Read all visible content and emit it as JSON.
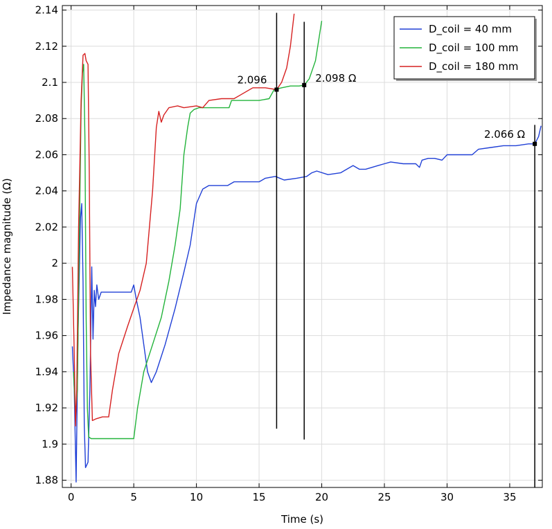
{
  "chart_data": {
    "type": "line",
    "title": "",
    "xlabel": "Time (s)",
    "ylabel": "Impedance magnitude (Ω)",
    "xlim": [
      -0.7,
      37.6
    ],
    "ylim": [
      1.876,
      2.1425
    ],
    "grid": true,
    "legend_position": "top-right",
    "x_ticks": [
      0,
      5,
      10,
      15,
      20,
      25,
      30,
      35
    ],
    "y_ticks": [
      1.88,
      1.9,
      1.92,
      1.94,
      1.96,
      1.98,
      2,
      2.02,
      2.04,
      2.06,
      2.08,
      2.1,
      2.12,
      2.14
    ],
    "x_tick_labels": [
      "0",
      "5",
      "10",
      "15",
      "20",
      "25",
      "30",
      "35"
    ],
    "y_tick_labels": [
      "1.88",
      "1.9",
      "1.92",
      "1.94",
      "1.96",
      "1.98",
      "2",
      "2.02",
      "2.04",
      "2.06",
      "2.08",
      "2.1",
      "2.12",
      "2.14"
    ],
    "series": [
      {
        "name": "D_coil = 40 mm",
        "color": "#1f3fd6",
        "points": [
          [
            0.1,
            1.954
          ],
          [
            0.25,
            1.93
          ],
          [
            0.4,
            1.879
          ],
          [
            0.55,
            1.96
          ],
          [
            0.75,
            2.025
          ],
          [
            0.85,
            2.033
          ],
          [
            0.95,
            1.99
          ],
          [
            1.05,
            1.91
          ],
          [
            1.15,
            1.887
          ],
          [
            1.35,
            1.89
          ],
          [
            1.5,
            1.93
          ],
          [
            1.65,
            1.998
          ],
          [
            1.75,
            1.958
          ],
          [
            1.85,
            1.985
          ],
          [
            1.95,
            1.976
          ],
          [
            2.05,
            1.988
          ],
          [
            2.2,
            1.98
          ],
          [
            2.4,
            1.984
          ],
          [
            3.5,
            1.984
          ],
          [
            4.8,
            1.984
          ],
          [
            5.0,
            1.988
          ],
          [
            5.2,
            1.98
          ],
          [
            5.5,
            1.97
          ],
          [
            5.8,
            1.955
          ],
          [
            6.1,
            1.94
          ],
          [
            6.4,
            1.934
          ],
          [
            6.8,
            1.94
          ],
          [
            7.5,
            1.955
          ],
          [
            8.3,
            1.975
          ],
          [
            9.0,
            1.995
          ],
          [
            9.5,
            2.01
          ],
          [
            10.0,
            2.033
          ],
          [
            10.5,
            2.041
          ],
          [
            11.0,
            2.043
          ],
          [
            12.5,
            2.043
          ],
          [
            13.0,
            2.045
          ],
          [
            13.5,
            2.045
          ],
          [
            14.5,
            2.045
          ],
          [
            15.0,
            2.045
          ],
          [
            15.5,
            2.047
          ],
          [
            16.3,
            2.048
          ],
          [
            17.0,
            2.046
          ],
          [
            18.0,
            2.047
          ],
          [
            18.8,
            2.048
          ],
          [
            19.2,
            2.05
          ],
          [
            19.6,
            2.051
          ],
          [
            20.5,
            2.049
          ],
          [
            21.5,
            2.05
          ],
          [
            22.0,
            2.052
          ],
          [
            22.5,
            2.054
          ],
          [
            23.0,
            2.052
          ],
          [
            23.5,
            2.052
          ],
          [
            24.5,
            2.054
          ],
          [
            25.0,
            2.055
          ],
          [
            25.5,
            2.056
          ],
          [
            26.5,
            2.055
          ],
          [
            27.5,
            2.055
          ],
          [
            27.8,
            2.053
          ],
          [
            28.0,
            2.057
          ],
          [
            28.5,
            2.058
          ],
          [
            29.0,
            2.058
          ],
          [
            29.6,
            2.057
          ],
          [
            30.0,
            2.06
          ],
          [
            31.0,
            2.06
          ],
          [
            32.0,
            2.06
          ],
          [
            32.5,
            2.063
          ],
          [
            33.5,
            2.064
          ],
          [
            34.5,
            2.065
          ],
          [
            35.5,
            2.065
          ],
          [
            36.5,
            2.066
          ],
          [
            37.0,
            2.066
          ],
          [
            37.3,
            2.07
          ],
          [
            37.5,
            2.076
          ]
        ]
      },
      {
        "name": "D_coil = 100 mm",
        "color": "#22b33a",
        "points": [
          [
            0.2,
            1.94
          ],
          [
            0.35,
            1.915
          ],
          [
            0.5,
            1.93
          ],
          [
            0.65,
            2.01
          ],
          [
            0.8,
            2.085
          ],
          [
            0.9,
            2.105
          ],
          [
            1.0,
            2.11
          ],
          [
            1.1,
            2.07
          ],
          [
            1.2,
            1.97
          ],
          [
            1.3,
            1.92
          ],
          [
            1.4,
            1.904
          ],
          [
            1.6,
            1.903
          ],
          [
            3.0,
            1.903
          ],
          [
            4.5,
            1.903
          ],
          [
            5.0,
            1.903
          ],
          [
            5.3,
            1.92
          ],
          [
            5.8,
            1.94
          ],
          [
            6.5,
            1.955
          ],
          [
            7.2,
            1.97
          ],
          [
            7.8,
            1.99
          ],
          [
            8.3,
            2.01
          ],
          [
            8.7,
            2.03
          ],
          [
            9.0,
            2.06
          ],
          [
            9.3,
            2.075
          ],
          [
            9.5,
            2.083
          ],
          [
            9.8,
            2.085
          ],
          [
            10.2,
            2.086
          ],
          [
            11.5,
            2.086
          ],
          [
            12.6,
            2.086
          ],
          [
            12.8,
            2.09
          ],
          [
            14.0,
            2.09
          ],
          [
            15.0,
            2.09
          ],
          [
            15.8,
            2.091
          ],
          [
            16.2,
            2.096
          ],
          [
            16.8,
            2.097
          ],
          [
            17.5,
            2.098
          ],
          [
            18.2,
            2.098
          ],
          [
            18.6,
            2.0985
          ],
          [
            19.0,
            2.102
          ],
          [
            19.5,
            2.112
          ],
          [
            20.0,
            2.134
          ]
        ]
      },
      {
        "name": "D_coil = 180 mm",
        "color": "#d62020",
        "points": [
          [
            0.1,
            1.998
          ],
          [
            0.25,
            1.95
          ],
          [
            0.35,
            1.91
          ],
          [
            0.45,
            1.93
          ],
          [
            0.6,
            2.02
          ],
          [
            0.8,
            2.09
          ],
          [
            0.95,
            2.115
          ],
          [
            1.1,
            2.116
          ],
          [
            1.2,
            2.112
          ],
          [
            1.35,
            2.11
          ],
          [
            1.45,
            2.05
          ],
          [
            1.55,
            1.95
          ],
          [
            1.7,
            1.913
          ],
          [
            2.0,
            1.914
          ],
          [
            2.5,
            1.915
          ],
          [
            3.0,
            1.915
          ],
          [
            3.3,
            1.93
          ],
          [
            3.8,
            1.95
          ],
          [
            4.5,
            1.965
          ],
          [
            5.0,
            1.975
          ],
          [
            5.5,
            1.985
          ],
          [
            6.0,
            2.0
          ],
          [
            6.5,
            2.04
          ],
          [
            6.8,
            2.075
          ],
          [
            7.0,
            2.084
          ],
          [
            7.2,
            2.078
          ],
          [
            7.4,
            2.082
          ],
          [
            7.8,
            2.086
          ],
          [
            8.5,
            2.087
          ],
          [
            9.0,
            2.086
          ],
          [
            10.0,
            2.087
          ],
          [
            10.5,
            2.086
          ],
          [
            11.0,
            2.09
          ],
          [
            12.0,
            2.091
          ],
          [
            13.0,
            2.091
          ],
          [
            13.5,
            2.093
          ],
          [
            14.5,
            2.097
          ],
          [
            15.5,
            2.097
          ],
          [
            16.4,
            2.096
          ],
          [
            16.8,
            2.1
          ],
          [
            17.2,
            2.108
          ],
          [
            17.5,
            2.12
          ],
          [
            17.8,
            2.138
          ]
        ]
      }
    ],
    "annotations": [
      {
        "label": "2.096",
        "x": 16.4,
        "y": 2.096,
        "vline": [
          1.9085,
          2.1385
        ]
      },
      {
        "label": "2.098 Ω",
        "x": 18.6,
        "y": 2.0985,
        "vline": [
          1.9025,
          2.1335
        ]
      },
      {
        "label": "2.066 Ω",
        "x": 37.0,
        "y": 2.066,
        "vline": [
          1.876,
          2.0765
        ]
      }
    ]
  }
}
